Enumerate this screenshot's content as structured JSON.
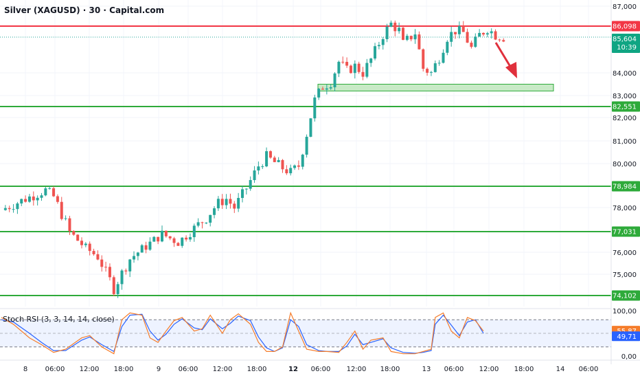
{
  "header": {
    "title": "Silver (XAGUSD) · 30 · Capital.com"
  },
  "indicator": {
    "label": "Stoch RSI (3, 3, 14, 14, close)",
    "k_value": "55,87",
    "d_value": "49,71",
    "k_color": "#f57c2a",
    "d_color": "#2962ff",
    "upper_band": 80,
    "lower_band": 20,
    "ticks": [
      "100,00",
      "50,00",
      "0,00"
    ]
  },
  "colors": {
    "up": "#26a69a",
    "down": "#ef5350",
    "resistance": "#f23645",
    "support": "#2eaa3a",
    "support_zone_fill": "#c8eac6",
    "arrow": "#e0303c",
    "price_tag_bg": "#10a583"
  },
  "chart_data": {
    "type": "candlestick",
    "title": "Silver (XAGUSD) · 30 · Capital.com",
    "ylim": [
      73.6,
      87.2
    ],
    "y_ticks": [
      "87,000",
      "84,000",
      "83,000",
      "82,000",
      "81,000",
      "80,000",
      "78,000",
      "76,000",
      "75,000"
    ],
    "x_ticks": [
      "8",
      "06:00",
      "12:00",
      "18:00",
      "9",
      "06:00",
      "12:00",
      "18:00",
      "12",
      "06:00",
      "12:00",
      "18:00",
      "13",
      "06:00",
      "12:00",
      "18:00",
      "14",
      "06:00"
    ],
    "current_price": {
      "label": "85,604",
      "countdown": "10:39"
    },
    "horizontal_levels": [
      {
        "value": 86.098,
        "label": "86,098",
        "role": "resistance"
      },
      {
        "value": 82.551,
        "label": "82,551",
        "role": "support"
      },
      {
        "value": 78.984,
        "label": "78,984",
        "role": "support"
      },
      {
        "value": 77.031,
        "label": "77,031",
        "role": "support"
      },
      {
        "value": 74.102,
        "label": "74,102",
        "role": "support"
      }
    ],
    "support_zone": [
      83.2,
      83.5
    ],
    "annotation": "arrow pointing down toward support zone",
    "close_path": [
      [
        0,
        77.9
      ],
      [
        6,
        78.4
      ],
      [
        11,
        78.8
      ],
      [
        13,
        78.5
      ],
      [
        17,
        77.0
      ],
      [
        21,
        76.2
      ],
      [
        24,
        75.8
      ],
      [
        28,
        74.4
      ],
      [
        32,
        75.7
      ],
      [
        36,
        76.3
      ],
      [
        40,
        76.9
      ],
      [
        44,
        76.5
      ],
      [
        47,
        77.0
      ],
      [
        51,
        77.6
      ],
      [
        54,
        78.2
      ],
      [
        56,
        78.4
      ],
      [
        58,
        78.0
      ],
      [
        61,
        78.9
      ],
      [
        64,
        79.9
      ],
      [
        66,
        80.3
      ],
      [
        70,
        79.8
      ],
      [
        72,
        79.6
      ],
      [
        74,
        79.9
      ],
      [
        76,
        81.3
      ],
      [
        78,
        82.8
      ],
      [
        80,
        83.4
      ],
      [
        82,
        83.6
      ],
      [
        84,
        84.5
      ],
      [
        86,
        84.1
      ],
      [
        88,
        84.3
      ],
      [
        90,
        84.0
      ],
      [
        92,
        84.6
      ],
      [
        95,
        85.7
      ],
      [
        97,
        86.2
      ],
      [
        99,
        85.9
      ],
      [
        100,
        85.3
      ],
      [
        103,
        85.8
      ],
      [
        105,
        84.2
      ],
      [
        107,
        84.0
      ],
      [
        109,
        84.7
      ],
      [
        111,
        85.6
      ],
      [
        113,
        85.9
      ],
      [
        115,
        85.8
      ],
      [
        117,
        85.1
      ],
      [
        119,
        85.7
      ],
      [
        121,
        86.0
      ],
      [
        123,
        85.7
      ],
      [
        125,
        85.6
      ]
    ],
    "stoch_rsi": {
      "k_path": [
        [
          0,
          85
        ],
        [
          3,
          70
        ],
        [
          7,
          40
        ],
        [
          10,
          25
        ],
        [
          13,
          8
        ],
        [
          16,
          15
        ],
        [
          20,
          40
        ],
        [
          22,
          45
        ],
        [
          25,
          20
        ],
        [
          28,
          5
        ],
        [
          30,
          80
        ],
        [
          32,
          95
        ],
        [
          35,
          90
        ],
        [
          37,
          40
        ],
        [
          39,
          30
        ],
        [
          41,
          55
        ],
        [
          43,
          78
        ],
        [
          45,
          85
        ],
        [
          48,
          55
        ],
        [
          50,
          60
        ],
        [
          52,
          90
        ],
        [
          55,
          50
        ],
        [
          57,
          80
        ],
        [
          59,
          93
        ],
        [
          62,
          70
        ],
        [
          64,
          30
        ],
        [
          66,
          10
        ],
        [
          68,
          10
        ],
        [
          70,
          20
        ],
        [
          72,
          95
        ],
        [
          74,
          55
        ],
        [
          76,
          15
        ],
        [
          79,
          10
        ],
        [
          81,
          10
        ],
        [
          84,
          8
        ],
        [
          86,
          30
        ],
        [
          88,
          55
        ],
        [
          90,
          15
        ],
        [
          92,
          35
        ],
        [
          95,
          40
        ],
        [
          97,
          10
        ],
        [
          100,
          5
        ],
        [
          103,
          5
        ],
        [
          105,
          10
        ],
        [
          107,
          15
        ],
        [
          108,
          85
        ],
        [
          110,
          95
        ],
        [
          112,
          55
        ],
        [
          114,
          40
        ],
        [
          116,
          85
        ],
        [
          118,
          78
        ],
        [
          120,
          55
        ]
      ],
      "d_path": [
        [
          0,
          80
        ],
        [
          3,
          75
        ],
        [
          7,
          50
        ],
        [
          10,
          30
        ],
        [
          13,
          12
        ],
        [
          16,
          12
        ],
        [
          20,
          35
        ],
        [
          22,
          42
        ],
        [
          25,
          25
        ],
        [
          28,
          10
        ],
        [
          30,
          65
        ],
        [
          32,
          90
        ],
        [
          35,
          92
        ],
        [
          37,
          55
        ],
        [
          39,
          35
        ],
        [
          41,
          48
        ],
        [
          43,
          70
        ],
        [
          45,
          82
        ],
        [
          48,
          62
        ],
        [
          50,
          58
        ],
        [
          52,
          82
        ],
        [
          55,
          60
        ],
        [
          57,
          72
        ],
        [
          59,
          88
        ],
        [
          62,
          78
        ],
        [
          64,
          42
        ],
        [
          66,
          18
        ],
        [
          68,
          10
        ],
        [
          70,
          18
        ],
        [
          72,
          80
        ],
        [
          74,
          65
        ],
        [
          76,
          25
        ],
        [
          79,
          12
        ],
        [
          81,
          10
        ],
        [
          84,
          10
        ],
        [
          86,
          22
        ],
        [
          88,
          48
        ],
        [
          90,
          25
        ],
        [
          92,
          30
        ],
        [
          95,
          38
        ],
        [
          97,
          18
        ],
        [
          100,
          8
        ],
        [
          103,
          6
        ],
        [
          105,
          8
        ],
        [
          107,
          12
        ],
        [
          108,
          70
        ],
        [
          110,
          90
        ],
        [
          112,
          68
        ],
        [
          114,
          45
        ],
        [
          116,
          75
        ],
        [
          118,
          80
        ],
        [
          120,
          50
        ]
      ]
    }
  }
}
